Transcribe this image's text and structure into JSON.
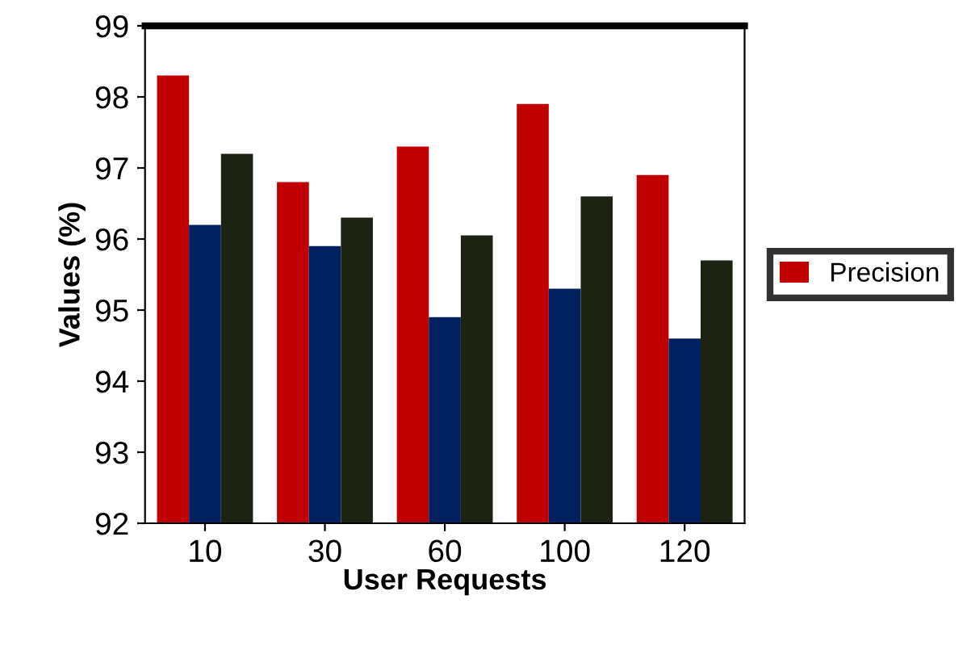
{
  "chart_data": {
    "type": "bar",
    "xlabel": "User Requests",
    "ylabel": "Values (%)",
    "categories": [
      "10",
      "30",
      "60",
      "100",
      "120"
    ],
    "series": [
      {
        "name": "Precision",
        "color": "#c00000",
        "values": [
          98.3,
          96.8,
          97.3,
          97.9,
          96.9
        ]
      },
      {
        "color": "#002060",
        "values": [
          96.2,
          95.9,
          94.9,
          95.3,
          94.6
        ]
      },
      {
        "color": "#1c2312",
        "values": [
          97.2,
          96.3,
          96.05,
          96.6,
          95.7
        ]
      }
    ],
    "ylim": [
      92,
      99
    ],
    "yticks": [
      92,
      93,
      94,
      95,
      96,
      97,
      98,
      99
    ],
    "grid": false,
    "legend": "right"
  }
}
